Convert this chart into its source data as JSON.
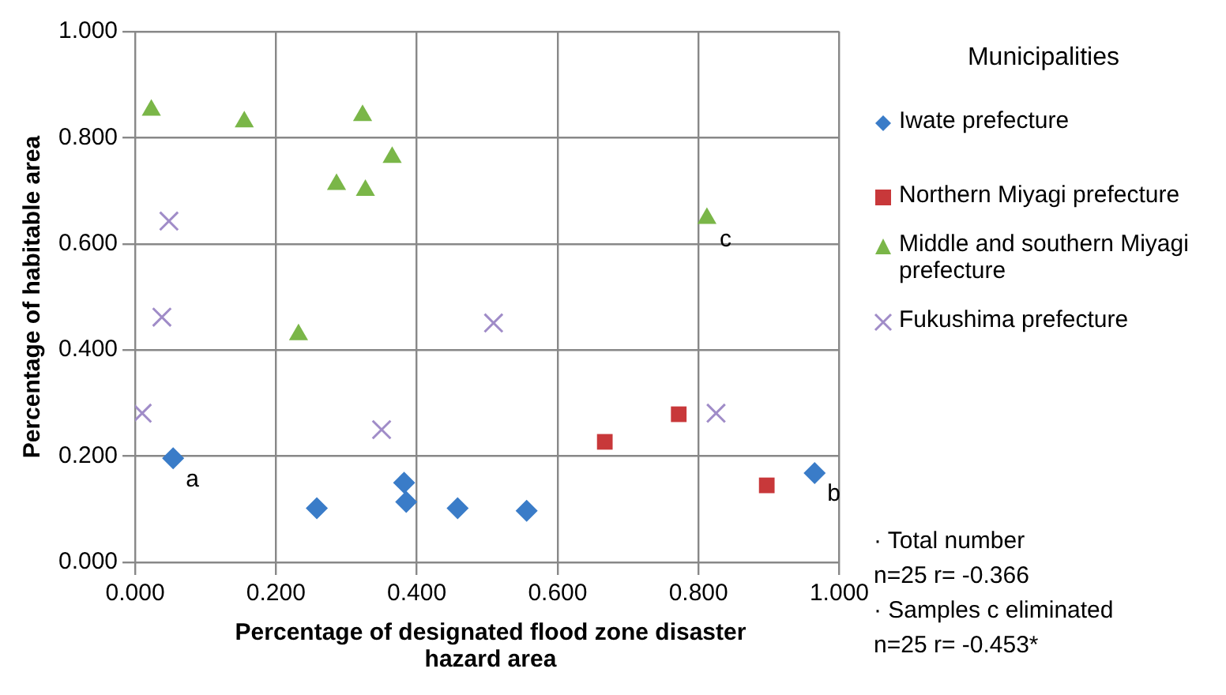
{
  "chart_data": {
    "type": "scatter",
    "xlabel": "Percentage of designated flood zone disaster hazard area",
    "ylabel": "Percentage of habitable area",
    "legend_title": "Municipalities",
    "legend": "right",
    "grid": true,
    "xlim": [
      0,
      1
    ],
    "ylim": [
      0,
      1
    ],
    "xticks": [
      {
        "value": 0,
        "label": "0.000"
      },
      {
        "value": 0.2,
        "label": "0.200"
      },
      {
        "value": 0.4,
        "label": "0.400"
      },
      {
        "value": 0.6,
        "label": "0.600"
      },
      {
        "value": 0.8,
        "label": "0.800"
      },
      {
        "value": 1,
        "label": "1.000"
      }
    ],
    "yticks": [
      {
        "value": 0,
        "label": "0.000"
      },
      {
        "value": 0.2,
        "label": "0.200"
      },
      {
        "value": 0.4,
        "label": "0.400"
      },
      {
        "value": 0.6,
        "label": "0.600"
      },
      {
        "value": 0.8,
        "label": "0.800"
      },
      {
        "value": 1,
        "label": "1.000"
      }
    ],
    "series": [
      {
        "name": "Iwate prefecture",
        "color": "#3a7cc8",
        "marker": "diamond",
        "x": [
          0.054,
          0.258,
          0.382,
          0.385,
          0.458,
          0.556,
          0.965
        ],
        "values": [
          0.196,
          0.102,
          0.15,
          0.114,
          0.102,
          0.097,
          0.168
        ]
      },
      {
        "name": "Northern Miyagi prefecture",
        "color": "#c8383a",
        "marker": "square",
        "x": [
          0.667,
          0.772,
          0.897
        ],
        "values": [
          0.227,
          0.279,
          0.145
        ]
      },
      {
        "name": "Middle and southern Miyagi prefecture",
        "color": "#7ab648",
        "marker": "triangle",
        "x": [
          0.023,
          0.155,
          0.323,
          0.365,
          0.286,
          0.327,
          0.232,
          0.812
        ],
        "values": [
          0.852,
          0.83,
          0.842,
          0.763,
          0.712,
          0.701,
          0.429,
          0.648
        ]
      },
      {
        "name": "Fukushima prefecture",
        "color": "#a08cc8",
        "marker": "cross",
        "x": [
          0.048,
          0.038,
          0.01,
          0.35,
          0.509,
          0.825
        ],
        "values": [
          0.643,
          0.462,
          0.281,
          0.25,
          0.451,
          0.281
        ]
      }
    ],
    "annotations": [
      {
        "text": "a",
        "x": 0.054,
        "y": 0.196
      },
      {
        "text": "b",
        "x": 0.965,
        "y": 0.168
      },
      {
        "text": "c",
        "x": 0.812,
        "y": 0.648
      },
      "· Total number\nn=25 r= -0.366",
      "· Samples c eliminated\nn=25 r= -0.453*"
    ]
  }
}
